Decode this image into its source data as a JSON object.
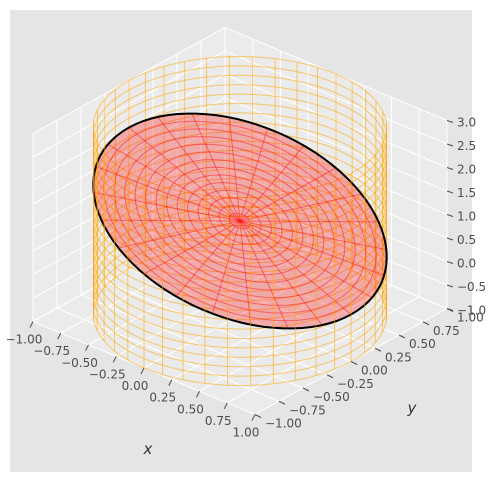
{
  "chart_data": {
    "type": "surface3d",
    "title": "",
    "xlabel": "x",
    "ylabel": "y",
    "zlabel": "",
    "xlim": [
      -1.0,
      1.0
    ],
    "ylim": [
      -1.0,
      1.0
    ],
    "zlim": [
      -1.0,
      3.0
    ],
    "xticks": [
      "−1.00",
      "−0.75",
      "−0.50",
      "−0.25",
      "0.00",
      "0.25",
      "0.50",
      "0.75",
      "1.00"
    ],
    "yticks": [
      "−1.00",
      "−0.75",
      "−0.50",
      "−0.25",
      "0.00",
      "0.25",
      "0.50",
      "0.75",
      "1.00"
    ],
    "zticks": [
      "−1.0",
      "−0.5",
      "0.0",
      "0.5",
      "1.0",
      "1.5",
      "2.0",
      "2.5",
      "3.0"
    ],
    "background": "#e5e5e5",
    "grid": true,
    "surfaces": [
      {
        "kind": "cylinder wireframe",
        "radius": 1.0,
        "z_range": [
          -1.0,
          3.0
        ],
        "color": "#ffa500"
      },
      {
        "kind": "plane disk",
        "equation": "z = 1 - x",
        "radius": 1.0,
        "color": "#ff0000"
      },
      {
        "kind": "boundary curve",
        "equation": "x = cos t, y = sin t, z = 1 - cos t",
        "color": "#000000"
      }
    ]
  }
}
